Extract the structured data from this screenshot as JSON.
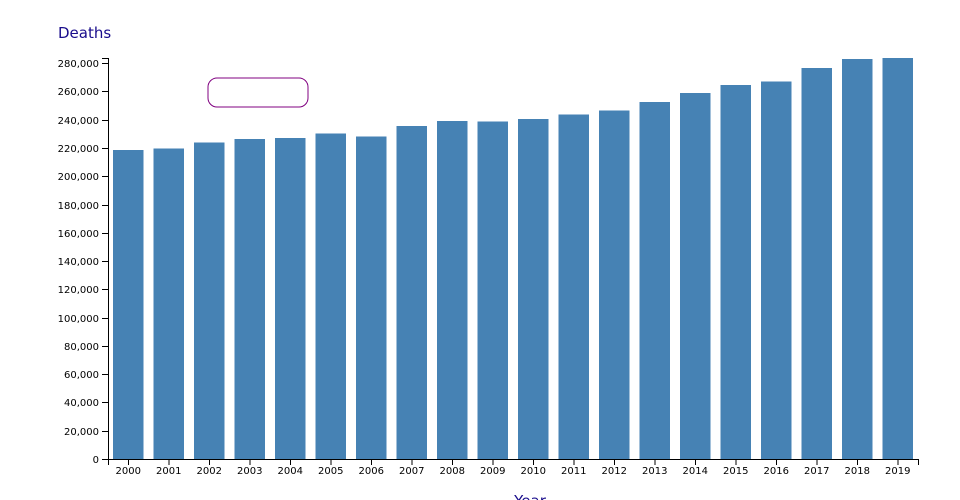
{
  "chart_data": {
    "type": "bar",
    "title": "",
    "ylabel": "Deaths",
    "xlabel": "Year",
    "categories": [
      "2000",
      "2001",
      "2002",
      "2003",
      "2004",
      "2005",
      "2006",
      "2007",
      "2008",
      "2009",
      "2010",
      "2011",
      "2012",
      "2013",
      "2014",
      "2015",
      "2016",
      "2017",
      "2018",
      "2019"
    ],
    "values": [
      218500,
      219800,
      223800,
      226400,
      227000,
      230400,
      228300,
      235600,
      239000,
      238700,
      240500,
      243700,
      246600,
      252600,
      258900,
      264700,
      267000,
      276800,
      283000,
      283700
    ],
    "ylim": [
      0,
      283700
    ],
    "yticks": [
      0,
      20000,
      40000,
      60000,
      80000,
      100000,
      120000,
      140000,
      160000,
      180000,
      200000,
      220000,
      240000,
      260000,
      280000
    ],
    "ytick_labels": [
      "0",
      "20,000",
      "40,000",
      "60,000",
      "80,000",
      "100,000",
      "120,000",
      "140,000",
      "160,000",
      "180,000",
      "200,000",
      "220,000",
      "240,000",
      "260,000",
      "280,000"
    ],
    "grid": false,
    "legend": "none",
    "colors": {
      "bar": "#4682b4",
      "axis_title": "#1a0d8c",
      "axis": "#000000",
      "tooltip_border": "#800080"
    }
  },
  "tooltip": {
    "text": "",
    "visible": true
  }
}
